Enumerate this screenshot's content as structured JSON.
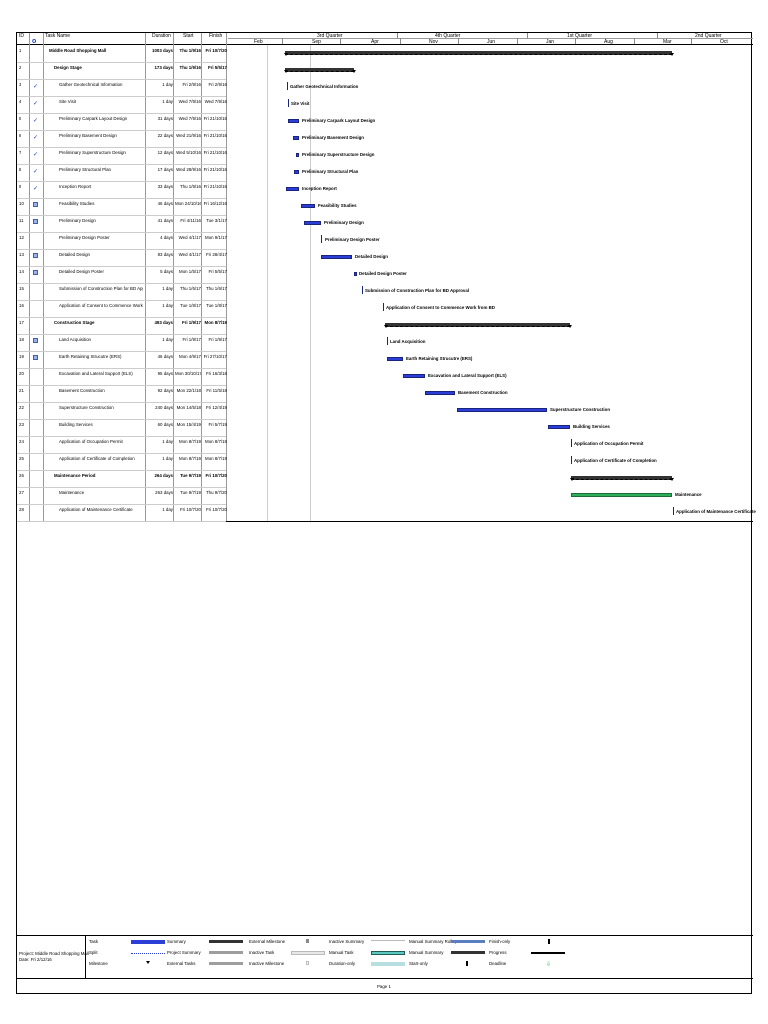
{
  "columns": {
    "id": "ID",
    "indicator": "i",
    "task_name": "Task Name",
    "duration": "Duration",
    "start": "Start",
    "finish": "Finish"
  },
  "timescale": {
    "quarters": [
      "3rd Quarter",
      "4th Quarter",
      "1st Quarter",
      "2nd Quarter"
    ],
    "months": [
      "Feb",
      "Sep",
      "Apr",
      "Nov",
      "Jun",
      "Jan",
      "Aug",
      "Mar",
      "Oct"
    ]
  },
  "tasks": [
    {
      "id": "1",
      "name": "Middle Road Shopping Mall",
      "duration": "1003 days",
      "start": "Thu 1/9/16",
      "finish": "Fri 10/7/20",
      "bold": true,
      "indent": 0,
      "ind": "",
      "label": ""
    },
    {
      "id": "2",
      "name": "Design Stage",
      "duration": "173 days",
      "start": "Thu 1/9/16",
      "finish": "Fri 5/5/17",
      "bold": true,
      "indent": 1,
      "ind": "",
      "label": ""
    },
    {
      "id": "3",
      "name": "Gather Geotechnical Information",
      "duration": "1 day",
      "start": "Fri 2/9/16",
      "finish": "Fri 2/9/16",
      "bold": false,
      "indent": 2,
      "ind": "check",
      "label": "Gather Geotechnical Information"
    },
    {
      "id": "4",
      "name": "Site Visit",
      "duration": "1 day",
      "start": "Wed 7/9/16",
      "finish": "Wed 7/9/16",
      "bold": false,
      "indent": 2,
      "ind": "check",
      "label": "Site Visit"
    },
    {
      "id": "5",
      "name": "Preliminary Carpark Layout Design",
      "duration": "31 days",
      "start": "Wed 7/9/16",
      "finish": "Fri 21/10/16",
      "bold": false,
      "indent": 2,
      "ind": "check",
      "label": "Preliminary Carpark Layout Design"
    },
    {
      "id": "6",
      "name": "Preliminary Basement Design",
      "duration": "22 days",
      "start": "Wed 21/9/16",
      "finish": "Fri 21/10/16",
      "bold": false,
      "indent": 2,
      "ind": "check",
      "label": "Preliminary Basement Design"
    },
    {
      "id": "7",
      "name": "Preliminary Superstructure Design",
      "duration": "12 days",
      "start": "Wed 5/10/16",
      "finish": "Fri 21/10/16",
      "bold": false,
      "indent": 2,
      "ind": "check",
      "label": "Preliminary Superstructure Design"
    },
    {
      "id": "8",
      "name": "Preliminary Structural Plan",
      "duration": "17 days",
      "start": "Wed 28/9/16",
      "finish": "Fri 21/10/16",
      "bold": false,
      "indent": 2,
      "ind": "check",
      "label": "Preliminary Structural Plan"
    },
    {
      "id": "9",
      "name": "Inception Report",
      "duration": "33 days",
      "start": "Thu 1/9/16",
      "finish": "Fri 21/10/16",
      "bold": false,
      "indent": 2,
      "ind": "check",
      "label": "Inception Report"
    },
    {
      "id": "10",
      "name": "Feasibility Studies",
      "duration": "46 days",
      "start": "Mon 24/10/16",
      "finish": "Fri 16/12/16",
      "bold": false,
      "indent": 2,
      "ind": "cal",
      "label": "Feasibility Studies"
    },
    {
      "id": "11",
      "name": "Preliminary Design",
      "duration": "41 days",
      "start": "Fri 4/11/16",
      "finish": "Tue 3/1/17",
      "bold": false,
      "indent": 2,
      "ind": "cal",
      "label": "Preliminary Design"
    },
    {
      "id": "12",
      "name": "Preliminary Design Poster",
      "duration": "4 days",
      "start": "Wed 4/1/17",
      "finish": "Mon 9/1/17",
      "bold": false,
      "indent": 2,
      "ind": "",
      "label": "Preliminary Design Poster"
    },
    {
      "id": "13",
      "name": "Detailed Design",
      "duration": "83 days",
      "start": "Wed 4/1/17",
      "finish": "Fri 28/4/17",
      "bold": false,
      "indent": 2,
      "ind": "cal",
      "label": "Detailed Design"
    },
    {
      "id": "14",
      "name": "Detailed Design Poster",
      "duration": "5 days",
      "start": "Mon 1/5/17",
      "finish": "Fri 5/5/17",
      "bold": false,
      "indent": 2,
      "ind": "cal",
      "label": "Detailed Design Poster"
    },
    {
      "id": "15",
      "name": "Submission of Construction Plan for BD Approval",
      "duration": "1 day",
      "start": "Thu 1/6/17",
      "finish": "Thu 1/6/17",
      "bold": false,
      "indent": 2,
      "ind": "",
      "label": "Submission of Construction Plan for BD Approval"
    },
    {
      "id": "16",
      "name": "Application of Consent to Commence Work from BD",
      "duration": "1 day",
      "start": "Tue 1/8/17",
      "finish": "Tue 1/8/17",
      "bold": false,
      "indent": 2,
      "ind": "",
      "label": "Application of Consent to Commence Work from BD"
    },
    {
      "id": "17",
      "name": "Construction Stage",
      "duration": "493 days",
      "start": "Fri 1/9/17",
      "finish": "Mon 8/7/19",
      "bold": true,
      "indent": 1,
      "ind": "",
      "label": ""
    },
    {
      "id": "18",
      "name": "Land Acquisition",
      "duration": "1 day",
      "start": "Fri 1/9/17",
      "finish": "Fri 1/9/17",
      "bold": false,
      "indent": 2,
      "ind": "cal",
      "label": "Land Acquisition"
    },
    {
      "id": "19",
      "name": "Earth Retaining Strucutre (ERS)",
      "duration": "46 days",
      "start": "Mon 4/9/17",
      "finish": "Fri 27/10/17",
      "bold": false,
      "indent": 2,
      "ind": "cal",
      "label": "Earth Retaining Strucutre (ERS)"
    },
    {
      "id": "20",
      "name": "Excavation and Lateral Support (ELS)",
      "duration": "95 days",
      "start": "Mon 30/10/17",
      "finish": "Fri 16/3/18",
      "bold": false,
      "indent": 2,
      "ind": "",
      "label": "Excavation and Lateral Support (ELS)"
    },
    {
      "id": "21",
      "name": "Basement Construction",
      "duration": "92 days",
      "start": "Mon 22/1/18",
      "finish": "Fri 11/5/18",
      "bold": false,
      "indent": 2,
      "ind": "",
      "label": "Basement Construction"
    },
    {
      "id": "22",
      "name": "Superstructure Construction",
      "duration": "240 days",
      "start": "Mon 14/5/18",
      "finish": "Fri 12/4/19",
      "bold": false,
      "indent": 2,
      "ind": "",
      "label": "Superstructure Construction"
    },
    {
      "id": "23",
      "name": "Building Services",
      "duration": "60 days",
      "start": "Mon 15/4/19",
      "finish": "Fri 5/7/19",
      "bold": false,
      "indent": 2,
      "ind": "",
      "label": "Building Services"
    },
    {
      "id": "24",
      "name": "Application of Occupation Permit",
      "duration": "1 day",
      "start": "Mon 8/7/19",
      "finish": "Mon 8/7/19",
      "bold": false,
      "indent": 2,
      "ind": "",
      "label": "Application of Occupation Permit"
    },
    {
      "id": "25",
      "name": "Application of Certificate of Completion",
      "duration": "1 day",
      "start": "Mon 8/7/19",
      "finish": "Mon 8/7/19",
      "bold": false,
      "indent": 2,
      "ind": "",
      "label": "Application of Certificate of Completion"
    },
    {
      "id": "26",
      "name": "Maintenance Period",
      "duration": "264 days",
      "start": "Tue 9/7/19",
      "finish": "Fri 10/7/20",
      "bold": true,
      "indent": 1,
      "ind": "",
      "label": ""
    },
    {
      "id": "27",
      "name": "Maintenance",
      "duration": "263 days",
      "start": "Tue 9/7/19",
      "finish": "Thu 9/7/20",
      "bold": false,
      "indent": 2,
      "ind": "",
      "label": "Maintenance"
    },
    {
      "id": "28",
      "name": "Application of Maintenance Certificate",
      "duration": "1 day",
      "start": "Fri 10/7/20",
      "finish": "Fri 10/7/20",
      "bold": false,
      "indent": 2,
      "ind": "",
      "label": "Application of Maintenance Certificate"
    }
  ],
  "footer": {
    "project": "Project: Middle Road Shopping Mall",
    "date": "Date: Fri 2/12/16",
    "page": "Page 1",
    "legend": [
      {
        "label": "Task",
        "kind": "task"
      },
      {
        "label": "Split",
        "kind": "split"
      },
      {
        "label": "Milestone",
        "kind": "milestone"
      },
      {
        "label": "Summary",
        "kind": "summary"
      },
      {
        "label": "Project Summary",
        "kind": "projsummary"
      },
      {
        "label": "External Tasks",
        "kind": "external"
      },
      {
        "label": "External Milestone",
        "kind": "extmilestone"
      },
      {
        "label": "Inactive Task",
        "kind": "inactive"
      },
      {
        "label": "Inactive Milestone",
        "kind": "inactmilestone"
      },
      {
        "label": "Inactive Summary",
        "kind": "inactsummary"
      },
      {
        "label": "Manual Task",
        "kind": "manualtask"
      },
      {
        "label": "Duration-only",
        "kind": "duronly"
      },
      {
        "label": "Manual Summary Rollup",
        "kind": "rollup"
      },
      {
        "label": "Manual Summary",
        "kind": "manualsummary"
      },
      {
        "label": "Start-only",
        "kind": "startonly"
      },
      {
        "label": "Finish-only",
        "kind": "finishonly"
      },
      {
        "label": "Progress",
        "kind": "progress"
      },
      {
        "label": "Deadline",
        "kind": "deadline"
      }
    ]
  },
  "colors": {
    "task": "#2b3fd6",
    "summary": "#333333",
    "maintenance": "#2fae5a",
    "check": "#1f3fbf"
  }
}
